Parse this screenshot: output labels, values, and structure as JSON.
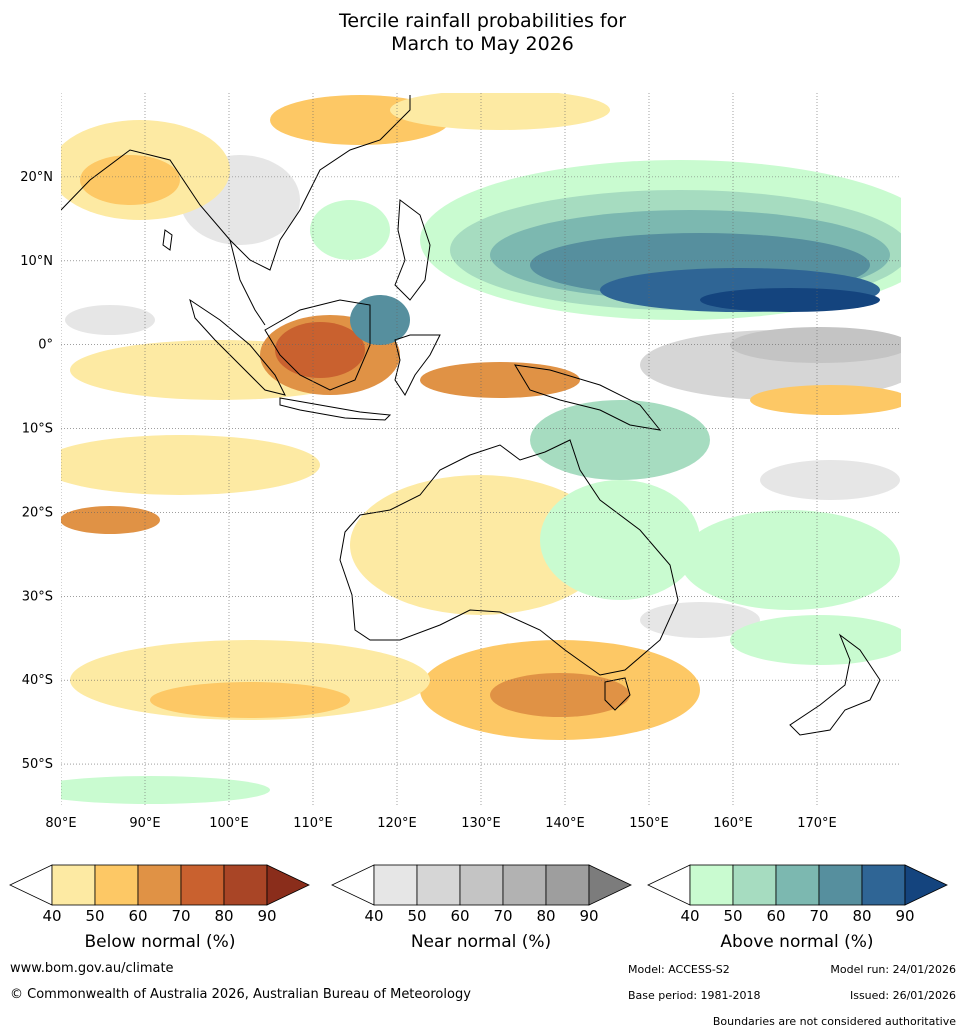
{
  "title_line1": "Tercile rainfall probabilities for",
  "title_line2": "March to May 2026",
  "map": {
    "lon_range": [
      80,
      180
    ],
    "lat_range": [
      -55,
      30
    ],
    "lat_ticks": [
      {
        "lat": 20,
        "label": "20°N"
      },
      {
        "lat": 10,
        "label": "10°N"
      },
      {
        "lat": 0,
        "label": "0°"
      },
      {
        "lat": -10,
        "label": "10°S"
      },
      {
        "lat": -20,
        "label": "20°S"
      },
      {
        "lat": -30,
        "label": "30°S"
      },
      {
        "lat": -40,
        "label": "40°S"
      },
      {
        "lat": -50,
        "label": "50°S"
      }
    ],
    "lon_ticks": [
      {
        "lon": 80,
        "label": "80°E"
      },
      {
        "lon": 90,
        "label": "90°E"
      },
      {
        "lon": 100,
        "label": "100°E"
      },
      {
        "lon": 110,
        "label": "110°E"
      },
      {
        "lon": 120,
        "label": "120°E"
      },
      {
        "lon": 130,
        "label": "130°E"
      },
      {
        "lon": 140,
        "label": "140°E"
      },
      {
        "lon": 150,
        "label": "150°E"
      },
      {
        "lon": 160,
        "label": "160°E"
      },
      {
        "lon": 170,
        "label": "170°E"
      }
    ]
  },
  "colorbars": {
    "ticks": [
      "40",
      "50",
      "60",
      "70",
      "80",
      "90"
    ],
    "below": {
      "label": "Below normal (%)",
      "colors": [
        "#fdeaa3",
        "#fdc865",
        "#e09245",
        "#c9612f",
        "#a94526"
      ],
      "over": "#8a2d1b"
    },
    "near": {
      "label": "Near normal (%)",
      "colors": [
        "#e6e6e6",
        "#d6d6d6",
        "#c4c4c4",
        "#b2b2b2",
        "#9e9e9e"
      ],
      "over": "#7c7c7c"
    },
    "above": {
      "label": "Above normal (%)",
      "colors": [
        "#c9fbd0",
        "#a6dcc0",
        "#7cb8b0",
        "#568f9e",
        "#2f6595"
      ],
      "over": "#14447e"
    }
  },
  "footer": {
    "website": "www.bom.gov.au/climate",
    "copyright": "© Commonwealth of Australia 2026, Australian Bureau of Meteorology",
    "model": "Model: ACCESS-S2",
    "model_run": "Model run: 24/01/2026",
    "base_period": "Base period: 1981-2018",
    "issued": "Issued: 26/01/2026",
    "disclaimer": "Boundaries are not considered authoritative"
  }
}
